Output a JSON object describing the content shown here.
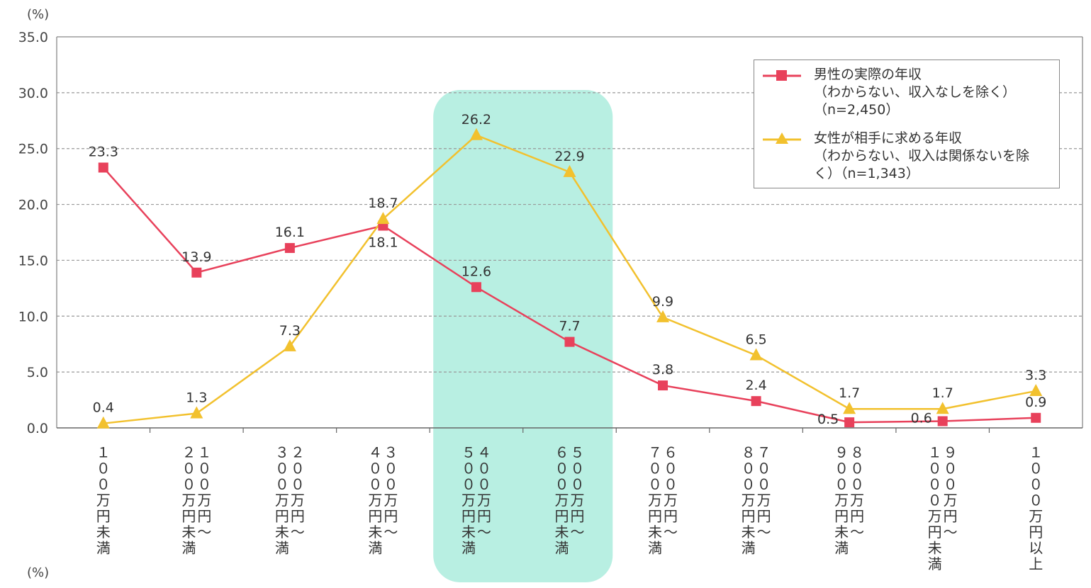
{
  "chart_data": {
    "type": "line",
    "y_unit_top": "(%)",
    "y_unit_bottom": "(%)",
    "ylim": [
      0,
      35
    ],
    "yticks": [
      "0.0",
      "5.0",
      "10.0",
      "15.0",
      "20.0",
      "25.0",
      "30.0",
      "35.0"
    ],
    "grid": true,
    "legend_placement": "top-right",
    "categories": [
      "１００万円未満",
      "１００万円〜２００万円未満",
      "２００万円〜３００万円未満",
      "３００万円〜４００万円未満",
      "４００万円〜５００万円未満",
      "５００万円〜６００万円未満",
      "６００万円〜７００万円未満",
      "７００万円〜８００万円未満",
      "８００万円〜９００万円未満",
      "９００万円〜１０００万円未満",
      "１０００万円以上"
    ],
    "category_columns": [
      [
        "１００万円未満"
      ],
      [
        "２００万円未満",
        "１００万円〜"
      ],
      [
        "３００万円未満",
        "２００万円〜"
      ],
      [
        "４００万円未満",
        "３００万円〜"
      ],
      [
        "５００万円未満",
        "４００万円〜"
      ],
      [
        "６００万円未満",
        "５００万円〜"
      ],
      [
        "７００万円未満",
        "６００万円〜"
      ],
      [
        "８００万円未満",
        "７００万円〜"
      ],
      [
        "９００万円未満",
        "８００万円〜"
      ],
      [
        "１０００万円未満",
        "９００万円〜"
      ],
      [
        "１０００万円以上"
      ]
    ],
    "highlight_categories": [
      4,
      5
    ],
    "series": [
      {
        "name": "男性の実際の年収\n（わからない、収入なしを除く）\n（n=2,450）",
        "marker": "square",
        "color": "#e8415b",
        "values": [
          23.3,
          13.9,
          16.1,
          18.1,
          12.6,
          7.7,
          3.8,
          2.4,
          0.5,
          0.6,
          0.9
        ],
        "labels": [
          "23.3",
          "13.9",
          "16.1",
          "18.1",
          "12.6",
          "7.7",
          "3.8",
          "2.4",
          "0.5",
          "0.6",
          "0.9"
        ]
      },
      {
        "name": "女性が相手に求める年収\n（わからない、収入は関係ないを除\nく）（n=1,343）",
        "marker": "triangle",
        "color": "#f2c12e",
        "values": [
          0.4,
          1.3,
          7.3,
          18.7,
          26.2,
          22.9,
          9.9,
          6.5,
          1.7,
          1.7,
          3.3
        ],
        "labels": [
          "0.4",
          "1.3",
          "7.3",
          "18.7",
          "26.2",
          "22.9",
          "9.9",
          "6.5",
          "1.7",
          "1.7",
          "3.3"
        ]
      }
    ]
  }
}
